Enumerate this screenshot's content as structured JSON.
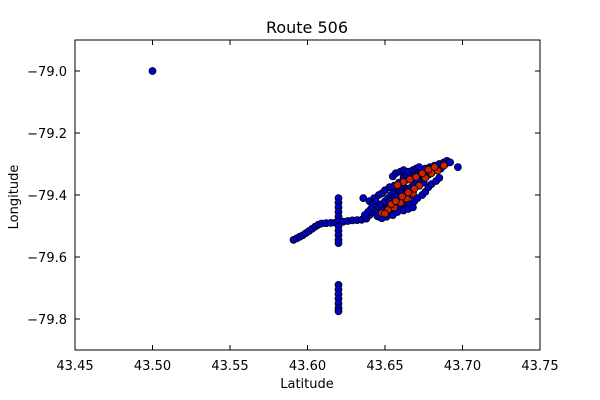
{
  "chart_data": {
    "type": "scatter",
    "title": "Route 506",
    "xlabel": "Latitude",
    "ylabel": "Longitude",
    "xlim": [
      43.45,
      43.75
    ],
    "ylim": [
      -79.9,
      -78.9
    ],
    "xticks": [
      "43.45",
      "43.50",
      "43.55",
      "43.60",
      "43.65",
      "43.70",
      "43.75"
    ],
    "yticks": [
      "−79.0",
      "−79.2",
      "−79.4",
      "−79.6",
      "−79.8"
    ],
    "ytick_values": [
      -79.0,
      -79.2,
      -79.4,
      -79.6,
      -79.8
    ],
    "xtick_values": [
      43.45,
      43.5,
      43.55,
      43.6,
      43.65,
      43.7,
      43.75
    ],
    "grid": false,
    "series": [
      {
        "color": "#0000cc",
        "points": [
          [
            43.5,
            -79.0
          ],
          [
            43.591,
            -79.545
          ],
          [
            43.593,
            -79.54
          ],
          [
            43.595,
            -79.535
          ],
          [
            43.597,
            -79.53
          ],
          [
            43.599,
            -79.523
          ],
          [
            43.601,
            -79.516
          ],
          [
            43.603,
            -79.509
          ],
          [
            43.605,
            -79.502
          ],
          [
            43.607,
            -79.496
          ],
          [
            43.609,
            -79.492
          ],
          [
            43.612,
            -79.491
          ],
          [
            43.615,
            -79.49
          ],
          [
            43.618,
            -79.489
          ],
          [
            43.62,
            -79.41
          ],
          [
            43.62,
            -79.425
          ],
          [
            43.62,
            -79.44
          ],
          [
            43.62,
            -79.455
          ],
          [
            43.62,
            -79.47
          ],
          [
            43.62,
            -79.485
          ],
          [
            43.62,
            -79.5
          ],
          [
            43.62,
            -79.515
          ],
          [
            43.62,
            -79.53
          ],
          [
            43.62,
            -79.545
          ],
          [
            43.62,
            -79.555
          ],
          [
            43.62,
            -79.69
          ],
          [
            43.62,
            -79.705
          ],
          [
            43.62,
            -79.72
          ],
          [
            43.62,
            -79.735
          ],
          [
            43.62,
            -79.75
          ],
          [
            43.62,
            -79.765
          ],
          [
            43.62,
            -79.775
          ],
          [
            43.623,
            -79.486
          ],
          [
            43.626,
            -79.484
          ],
          [
            43.629,
            -79.482
          ],
          [
            43.632,
            -79.481
          ],
          [
            43.635,
            -79.48
          ],
          [
            43.638,
            -79.476
          ],
          [
            43.64,
            -79.465
          ],
          [
            43.642,
            -79.455
          ],
          [
            43.644,
            -79.445
          ],
          [
            43.646,
            -79.438
          ],
          [
            43.648,
            -79.43
          ],
          [
            43.65,
            -79.42
          ],
          [
            43.652,
            -79.41
          ],
          [
            43.654,
            -79.4
          ],
          [
            43.656,
            -79.39
          ],
          [
            43.658,
            -79.38
          ],
          [
            43.66,
            -79.37
          ],
          [
            43.662,
            -79.36
          ],
          [
            43.664,
            -79.35
          ],
          [
            43.666,
            -79.34
          ],
          [
            43.668,
            -79.33
          ],
          [
            43.67,
            -79.325
          ],
          [
            43.673,
            -79.32
          ],
          [
            43.676,
            -79.315
          ],
          [
            43.679,
            -79.31
          ],
          [
            43.682,
            -79.305
          ],
          [
            43.685,
            -79.3
          ],
          [
            43.688,
            -79.295
          ],
          [
            43.69,
            -79.29
          ],
          [
            43.697,
            -79.31
          ],
          [
            43.636,
            -79.41
          ],
          [
            43.64,
            -79.42
          ],
          [
            43.643,
            -79.41
          ],
          [
            43.646,
            -79.4
          ],
          [
            43.648,
            -79.395
          ],
          [
            43.65,
            -79.385
          ],
          [
            43.653,
            -79.375
          ],
          [
            43.656,
            -79.37
          ],
          [
            43.659,
            -79.36
          ],
          [
            43.662,
            -79.345
          ],
          [
            43.664,
            -79.335
          ],
          [
            43.667,
            -79.33
          ],
          [
            43.655,
            -79.34
          ],
          [
            43.657,
            -79.33
          ],
          [
            43.66,
            -79.325
          ],
          [
            43.662,
            -79.32
          ],
          [
            43.665,
            -79.325
          ],
          [
            43.668,
            -79.32
          ],
          [
            43.67,
            -79.315
          ],
          [
            43.672,
            -79.31
          ],
          [
            43.648,
            -79.45
          ],
          [
            43.65,
            -79.445
          ],
          [
            43.652,
            -79.44
          ],
          [
            43.655,
            -79.435
          ],
          [
            43.658,
            -79.43
          ],
          [
            43.66,
            -79.42
          ],
          [
            43.663,
            -79.41
          ],
          [
            43.666,
            -79.4
          ],
          [
            43.668,
            -79.39
          ],
          [
            43.66,
            -79.39
          ],
          [
            43.662,
            -79.4
          ],
          [
            43.664,
            -79.38
          ],
          [
            43.646,
            -79.47
          ],
          [
            43.648,
            -79.46
          ],
          [
            43.651,
            -79.455
          ],
          [
            43.654,
            -79.45
          ],
          [
            43.657,
            -79.445
          ],
          [
            43.66,
            -79.44
          ],
          [
            43.663,
            -79.435
          ],
          [
            43.666,
            -79.43
          ],
          [
            43.669,
            -79.42
          ],
          [
            43.671,
            -79.41
          ],
          [
            43.674,
            -79.4
          ],
          [
            43.676,
            -79.39
          ],
          [
            43.678,
            -79.375
          ],
          [
            43.68,
            -79.365
          ],
          [
            43.683,
            -79.355
          ],
          [
            43.685,
            -79.345
          ],
          [
            43.676,
            -79.33
          ],
          [
            43.679,
            -79.325
          ],
          [
            43.682,
            -79.32
          ],
          [
            43.686,
            -79.315
          ],
          [
            43.689,
            -79.3
          ],
          [
            43.692,
            -79.295
          ],
          [
            43.675,
            -79.36
          ],
          [
            43.672,
            -79.37
          ],
          [
            43.644,
            -79.42
          ],
          [
            43.642,
            -79.43
          ],
          [
            43.641,
            -79.445
          ],
          [
            43.639,
            -79.455
          ],
          [
            43.637,
            -79.465
          ],
          [
            43.653,
            -79.42
          ],
          [
            43.656,
            -79.41
          ],
          [
            43.658,
            -79.405
          ],
          [
            43.661,
            -79.395
          ],
          [
            43.665,
            -79.385
          ],
          [
            43.667,
            -79.375
          ],
          [
            43.669,
            -79.365
          ],
          [
            43.671,
            -79.355
          ],
          [
            43.673,
            -79.345
          ],
          [
            43.675,
            -79.34
          ],
          [
            43.678,
            -79.335
          ],
          [
            43.655,
            -79.465
          ],
          [
            43.658,
            -79.455
          ],
          [
            43.662,
            -79.45
          ],
          [
            43.665,
            -79.445
          ],
          [
            43.668,
            -79.44
          ],
          [
            43.651,
            -79.47
          ],
          [
            43.648,
            -79.475
          ],
          [
            43.645,
            -79.468
          ]
        ]
      },
      {
        "color": "#cc2200",
        "points": [
          [
            43.648,
            -79.458
          ],
          [
            43.652,
            -79.448
          ],
          [
            43.656,
            -79.44
          ],
          [
            43.66,
            -79.425
          ],
          [
            43.664,
            -79.412
          ],
          [
            43.668,
            -79.395
          ],
          [
            43.672,
            -79.37
          ],
          [
            43.676,
            -79.345
          ],
          [
            43.68,
            -79.33
          ],
          [
            43.684,
            -79.322
          ],
          [
            43.688,
            -79.305
          ],
          [
            43.658,
            -79.368
          ],
          [
            43.662,
            -79.358
          ],
          [
            43.666,
            -79.35
          ],
          [
            43.67,
            -79.342
          ],
          [
            43.674,
            -79.33
          ],
          [
            43.678,
            -79.318
          ],
          [
            43.682,
            -79.31
          ],
          [
            43.65,
            -79.46
          ],
          [
            43.654,
            -79.43
          ],
          [
            43.657,
            -79.42
          ],
          [
            43.661,
            -79.405
          ],
          [
            43.665,
            -79.392
          ],
          [
            43.669,
            -79.38
          ]
        ]
      }
    ]
  }
}
